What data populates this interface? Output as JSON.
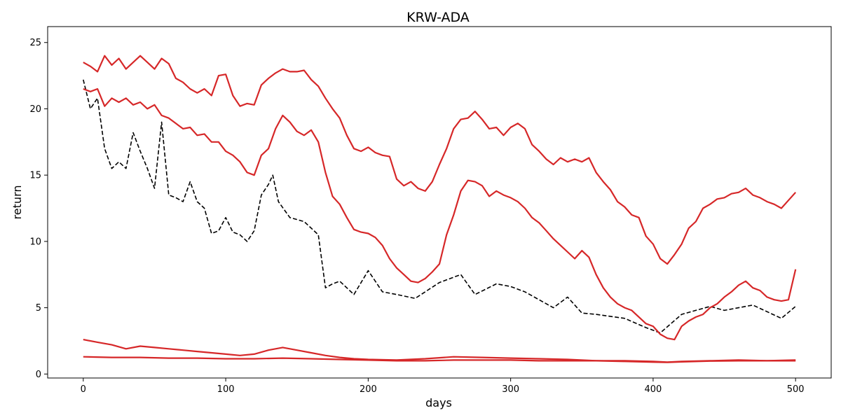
{
  "chart_data": {
    "type": "line",
    "title": "KRW-ADA",
    "xlabel": "days",
    "ylabel": "return",
    "xlim": [
      -25,
      525
    ],
    "ylim": [
      -0.3,
      26.2
    ],
    "xticks": [
      0,
      100,
      200,
      300,
      400,
      500
    ],
    "yticks": [
      0,
      5,
      10,
      15,
      20,
      25
    ],
    "grid": false,
    "legend": "none",
    "series": [
      {
        "style": "dashed",
        "color": "#000000",
        "x": [
          0,
          5,
          10,
          15,
          20,
          25,
          30,
          35,
          40,
          45,
          50,
          55,
          60,
          65,
          70,
          75,
          80,
          85,
          90,
          95,
          100,
          105,
          110,
          115,
          120,
          125,
          130,
          133,
          137,
          145,
          155,
          165,
          170,
          175,
          180,
          190,
          200,
          210,
          220,
          233,
          250,
          265,
          275,
          290,
          300,
          310,
          330,
          340,
          350,
          360,
          380,
          395,
          405,
          420,
          440,
          450,
          470,
          490,
          500
        ],
        "y": [
          22.2,
          20.0,
          20.8,
          17.0,
          15.5,
          16.0,
          15.5,
          18.2,
          16.8,
          15.5,
          14.0,
          19.0,
          13.5,
          13.3,
          13.0,
          14.5,
          13.0,
          12.5,
          10.6,
          10.8,
          11.8,
          10.7,
          10.5,
          10.0,
          10.8,
          13.5,
          14.3,
          15.0,
          13.0,
          11.8,
          11.5,
          10.5,
          6.5,
          6.8,
          7.0,
          6.0,
          7.8,
          6.2,
          6.0,
          5.7,
          6.9,
          7.5,
          6.0,
          6.8,
          6.6,
          6.2,
          5.0,
          5.8,
          4.6,
          4.5,
          4.2,
          3.5,
          3.1,
          4.5,
          5.1,
          4.8,
          5.2,
          4.2,
          5.1
        ]
      },
      {
        "style": "solid",
        "color": "#d62728",
        "x": [
          0,
          5,
          10,
          15,
          20,
          25,
          30,
          35,
          40,
          45,
          50,
          55,
          60,
          65,
          70,
          75,
          80,
          85,
          90,
          95,
          100,
          105,
          110,
          115,
          120,
          125,
          130,
          135,
          140,
          145,
          150,
          155,
          160,
          165,
          170,
          175,
          180,
          185,
          190,
          195,
          200,
          205,
          210,
          215,
          220,
          225,
          230,
          235,
          240,
          245,
          250,
          255,
          260,
          265,
          270,
          275,
          280,
          285,
          290,
          295,
          300,
          305,
          310,
          315,
          320,
          325,
          330,
          335,
          340,
          345,
          350,
          355,
          360,
          365,
          370,
          375,
          380,
          385,
          390,
          395,
          400,
          405,
          410,
          415,
          420,
          425,
          430,
          435,
          440,
          445,
          450,
          455,
          460,
          465,
          470,
          475,
          480,
          485,
          490,
          495,
          500
        ],
        "y": [
          23.5,
          23.2,
          22.8,
          24.0,
          23.3,
          23.8,
          23.0,
          23.5,
          24.0,
          23.5,
          23.0,
          23.8,
          23.4,
          22.3,
          22.0,
          21.5,
          21.2,
          21.5,
          21.0,
          22.5,
          22.6,
          21.0,
          20.2,
          20.4,
          20.3,
          21.8,
          22.3,
          22.7,
          23.0,
          22.8,
          22.8,
          22.9,
          22.2,
          21.7,
          20.8,
          20.0,
          19.3,
          18.0,
          17.0,
          16.8,
          17.1,
          16.7,
          16.5,
          16.4,
          14.7,
          14.2,
          14.5,
          14.0,
          13.8,
          14.5,
          15.8,
          17.0,
          18.5,
          19.2,
          19.3,
          19.8,
          19.2,
          18.5,
          18.6,
          18.0,
          18.6,
          18.9,
          18.5,
          17.3,
          16.8,
          16.2,
          15.8,
          16.3,
          16.0,
          16.2,
          16.0,
          16.3,
          15.2,
          14.5,
          13.9,
          13.0,
          12.6,
          12.0,
          11.8,
          10.4,
          9.8,
          8.7,
          8.3,
          9.0,
          9.8,
          11.0,
          11.5,
          12.5,
          12.8,
          13.2,
          13.3,
          13.6,
          13.7,
          14.0,
          13.5,
          13.3,
          13.0,
          12.8,
          12.5,
          13.1,
          13.7
        ]
      },
      {
        "style": "solid",
        "color": "#d62728",
        "x": [
          0,
          5,
          10,
          15,
          20,
          25,
          30,
          35,
          40,
          45,
          50,
          55,
          60,
          65,
          70,
          75,
          80,
          85,
          90,
          95,
          100,
          105,
          110,
          115,
          120,
          125,
          130,
          135,
          140,
          145,
          150,
          155,
          160,
          165,
          170,
          175,
          180,
          185,
          190,
          195,
          200,
          205,
          210,
          215,
          220,
          225,
          230,
          235,
          240,
          245,
          250,
          255,
          260,
          265,
          270,
          275,
          280,
          285,
          290,
          295,
          300,
          305,
          310,
          315,
          320,
          325,
          330,
          335,
          340,
          345,
          350,
          355,
          360,
          365,
          370,
          375,
          380,
          385,
          390,
          395,
          400,
          405,
          410,
          415,
          420,
          425,
          430,
          435,
          440,
          445,
          450,
          455,
          460,
          465,
          470,
          475,
          480,
          485,
          490,
          495,
          500
        ],
        "y": [
          21.5,
          21.3,
          21.5,
          20.2,
          20.8,
          20.5,
          20.8,
          20.3,
          20.5,
          20.0,
          20.3,
          19.5,
          19.3,
          18.9,
          18.5,
          18.6,
          18.0,
          18.1,
          17.5,
          17.5,
          16.8,
          16.5,
          16.0,
          15.2,
          15.0,
          16.5,
          17.0,
          18.5,
          19.5,
          19.0,
          18.3,
          18.0,
          18.4,
          17.5,
          15.2,
          13.4,
          12.8,
          11.8,
          10.9,
          10.7,
          10.6,
          10.3,
          9.7,
          8.7,
          8.0,
          7.5,
          7.0,
          6.9,
          7.2,
          7.7,
          8.3,
          10.5,
          12.0,
          13.8,
          14.6,
          14.5,
          14.2,
          13.4,
          13.8,
          13.5,
          13.3,
          13.0,
          12.5,
          11.8,
          11.4,
          10.8,
          10.2,
          9.7,
          9.2,
          8.7,
          9.3,
          8.8,
          7.5,
          6.5,
          5.8,
          5.3,
          5.0,
          4.8,
          4.3,
          3.8,
          3.6,
          3.0,
          2.7,
          2.6,
          3.6,
          4.0,
          4.3,
          4.5,
          5.0,
          5.3,
          5.8,
          6.2,
          6.7,
          7.0,
          6.5,
          6.3,
          5.8,
          5.6,
          5.5,
          5.6,
          7.9
        ]
      },
      {
        "style": "solid",
        "color": "#d62728",
        "x": [
          0,
          10,
          20,
          30,
          40,
          50,
          60,
          70,
          80,
          90,
          100,
          110,
          120,
          130,
          140,
          150,
          160,
          170,
          180,
          190,
          200,
          220,
          240,
          260,
          280,
          300,
          320,
          340,
          360,
          380,
          400,
          410,
          420,
          440,
          460,
          480,
          500
        ],
        "y": [
          2.6,
          2.4,
          2.2,
          1.9,
          2.1,
          2.0,
          1.9,
          1.8,
          1.7,
          1.6,
          1.5,
          1.4,
          1.5,
          1.8,
          2.0,
          1.8,
          1.6,
          1.4,
          1.25,
          1.15,
          1.1,
          1.05,
          1.15,
          1.3,
          1.25,
          1.2,
          1.15,
          1.1,
          1.0,
          1.0,
          0.95,
          0.9,
          0.95,
          1.0,
          1.05,
          1.0,
          1.05
        ]
      },
      {
        "style": "solid",
        "color": "#d62728",
        "x": [
          0,
          20,
          40,
          60,
          80,
          100,
          120,
          140,
          160,
          180,
          200,
          220,
          240,
          260,
          280,
          300,
          320,
          340,
          360,
          380,
          400,
          410,
          420,
          440,
          460,
          480,
          500
        ],
        "y": [
          1.3,
          1.25,
          1.25,
          1.2,
          1.2,
          1.15,
          1.15,
          1.2,
          1.15,
          1.1,
          1.05,
          1.0,
          1.0,
          1.05,
          1.05,
          1.05,
          1.0,
          1.0,
          1.0,
          0.95,
          0.9,
          0.88,
          0.92,
          0.98,
          1.0,
          1.0,
          1.0
        ]
      }
    ]
  }
}
